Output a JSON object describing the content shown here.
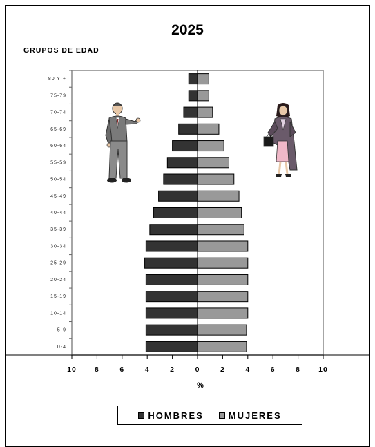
{
  "chart_data": {
    "type": "bar",
    "orientation": "horizontal-population-pyramid",
    "title": "2025",
    "ylabel": "GRUPOS DE EDAD",
    "xlabel": "%",
    "xlim": [
      -10,
      10
    ],
    "x_ticks": [
      "10",
      "8",
      "6",
      "4",
      "2",
      "0",
      "2",
      "4",
      "6",
      "8",
      "10"
    ],
    "categories": [
      "0-4",
      "5-9",
      "10-14",
      "15-19",
      "20-24",
      "25-29",
      "30-34",
      "35-39",
      "40-44",
      "45-49",
      "50-54",
      "55-59",
      "60-64",
      "65-69",
      "70-74",
      "75-79",
      "80 Y +"
    ],
    "series": [
      {
        "name": "HOMBRES",
        "color": "#333333",
        "values": [
          4.1,
          4.1,
          4.1,
          4.1,
          4.1,
          4.2,
          4.1,
          3.8,
          3.5,
          3.1,
          2.7,
          2.4,
          2.0,
          1.5,
          1.1,
          0.7,
          0.7
        ]
      },
      {
        "name": "MUJERES",
        "color": "#999999",
        "values": [
          3.9,
          3.9,
          4.0,
          4.0,
          4.0,
          4.0,
          4.0,
          3.7,
          3.5,
          3.3,
          2.9,
          2.5,
          2.1,
          1.7,
          1.2,
          0.9,
          0.9
        ]
      }
    ],
    "grid": false,
    "legend": "bottom"
  },
  "icons": {
    "left_figure": "businessman-icon",
    "right_figure": "businesswoman-icon"
  }
}
